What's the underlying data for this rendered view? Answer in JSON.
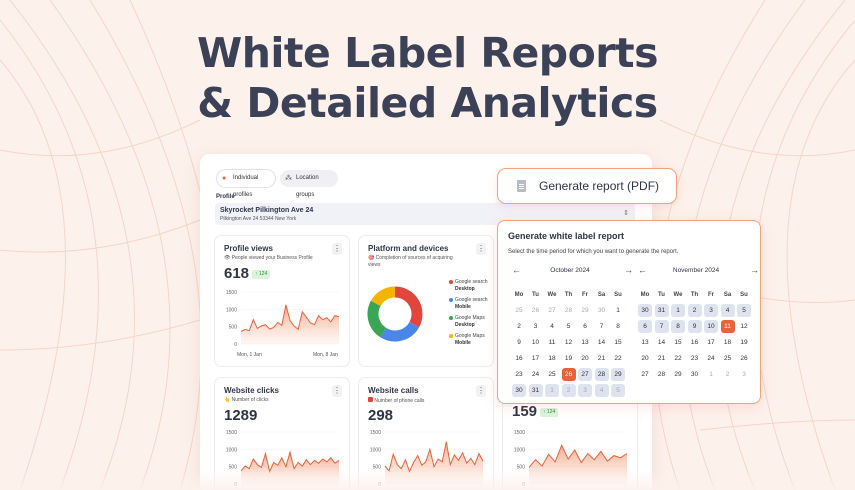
{
  "headline": {
    "line1": "White Label Reports",
    "line2": "& Detailed Analytics"
  },
  "dashboard": {
    "tabs": [
      {
        "label": "Individual profiles"
      },
      {
        "label": "Location groups"
      }
    ],
    "profile": {
      "label": "Profile",
      "name": "Skyrocket Pilkington Ave 24",
      "address": "Pilkington Ave 24 53344 New York"
    },
    "cards": {
      "profile_views": {
        "title": "Profile views",
        "subtitle": "People viewed your Business Profile",
        "value": "618",
        "delta": "↑ 124",
        "y_ticks": [
          "1500",
          "1000",
          "500",
          "0"
        ],
        "date_start": "Mon, 1 Jan",
        "date_end": "Mon, 8 Jan",
        "series": [
          360,
          420,
          380,
          700,
          450,
          520,
          560,
          430,
          480,
          620,
          540,
          1130,
          680,
          520,
          420,
          930,
          780,
          610,
          560,
          820,
          700,
          760,
          640,
          820,
          790
        ]
      },
      "platform": {
        "title": "Platform and devices",
        "subtitle": "Completion of sources of acquiring views",
        "legend": [
          {
            "source": "Google search",
            "device": "Desktop",
            "color": "#e0463b"
          },
          {
            "source": "Google search",
            "device": "Mobile",
            "color": "#4a86e8"
          },
          {
            "source": "Google Maps",
            "device": "Desktop",
            "color": "#3aa655"
          },
          {
            "source": "Google Maps",
            "device": "Mobile",
            "color": "#f4b400"
          }
        ],
        "shares": [
          33,
          26,
          24,
          17
        ]
      },
      "website_clicks": {
        "title": "Website clicks",
        "subtitle": "Number of clicks",
        "value": "1289",
        "y_ticks": [
          "1500",
          "1000",
          "500",
          "0"
        ],
        "series": [
          380,
          520,
          440,
          720,
          560,
          480,
          880,
          360,
          620,
          540,
          760,
          500,
          920,
          440,
          620,
          520,
          700,
          560,
          680,
          600,
          720,
          640,
          760,
          600,
          680
        ]
      },
      "website_calls": {
        "title": "Website calls",
        "subtitle": "Number of phone calls",
        "value": "298",
        "y_ticks": [
          "1500",
          "1000",
          "500",
          "0"
        ],
        "series": [
          520,
          380,
          860,
          560,
          440,
          700,
          360,
          620,
          820,
          540,
          640,
          1000,
          500,
          720,
          640,
          1220,
          560,
          840,
          680,
          900,
          600,
          740,
          560,
          880,
          660
        ]
      },
      "third": {
        "value": "159",
        "delta": "↑ 124",
        "y_ticks": [
          "1500",
          "1000",
          "500",
          "0"
        ],
        "series": [
          480,
          700,
          520,
          860,
          640,
          1120,
          720,
          980,
          620,
          880,
          700,
          940,
          660,
          820,
          760,
          880
        ]
      }
    }
  },
  "generate_button": {
    "label": "Generate report (PDF)"
  },
  "report": {
    "title": "Generate white label report",
    "subtitle": "Select the time period for which you want to generate the report.",
    "weekdays": [
      "Mo",
      "Tu",
      "We",
      "Th",
      "Fr",
      "Sa",
      "Su"
    ],
    "calendars": [
      {
        "month": "October 2024",
        "rows": [
          [
            "25",
            "26",
            "27",
            "28",
            "29",
            "30",
            "1"
          ],
          [
            "2",
            "3",
            "4",
            "5",
            "6",
            "7",
            "8"
          ],
          [
            "9",
            "10",
            "11",
            "12",
            "13",
            "14",
            "15"
          ],
          [
            "16",
            "17",
            "18",
            "19",
            "20",
            "21",
            "22"
          ],
          [
            "23",
            "24",
            "25",
            "26",
            "27",
            "28",
            "29"
          ],
          [
            "30",
            "31",
            "1",
            "2",
            "3",
            "4",
            "5"
          ]
        ],
        "muted": [
          [
            0,
            0
          ],
          [
            0,
            1
          ],
          [
            0,
            2
          ],
          [
            0,
            3
          ],
          [
            0,
            4
          ],
          [
            0,
            5
          ],
          [
            5,
            2
          ],
          [
            5,
            3
          ],
          [
            5,
            4
          ],
          [
            5,
            5
          ],
          [
            5,
            6
          ]
        ],
        "selected": [
          [
            4,
            3
          ],
          [
            4,
            4
          ],
          [
            4,
            5
          ],
          [
            4,
            6
          ],
          [
            5,
            0
          ],
          [
            5,
            1
          ],
          [
            5,
            2
          ],
          [
            5,
            3
          ],
          [
            5,
            4
          ],
          [
            5,
            5
          ],
          [
            5,
            6
          ]
        ],
        "today": [
          4,
          3
        ]
      },
      {
        "month": "November 2024",
        "rows": [
          [
            "30",
            "31",
            "1",
            "2",
            "3",
            "4",
            "5"
          ],
          [
            "6",
            "7",
            "8",
            "9",
            "10",
            "11",
            "12"
          ],
          [
            "13",
            "14",
            "15",
            "16",
            "17",
            "18",
            "19"
          ],
          [
            "20",
            "21",
            "22",
            "23",
            "24",
            "25",
            "26"
          ],
          [
            "27",
            "28",
            "29",
            "30",
            "1",
            "2",
            "3"
          ]
        ],
        "muted": [
          [
            4,
            4
          ],
          [
            4,
            5
          ],
          [
            4,
            6
          ]
        ],
        "selected": [
          [
            0,
            0
          ],
          [
            0,
            1
          ],
          [
            0,
            2
          ],
          [
            0,
            3
          ],
          [
            0,
            4
          ],
          [
            0,
            5
          ],
          [
            0,
            6
          ],
          [
            1,
            0
          ],
          [
            1,
            1
          ],
          [
            1,
            2
          ],
          [
            1,
            3
          ],
          [
            1,
            4
          ]
        ],
        "today": [
          1,
          5
        ]
      }
    ]
  },
  "colors": {
    "accent": "#e8623a",
    "accent_soft": "#f3a27b",
    "text": "#2f3547"
  }
}
